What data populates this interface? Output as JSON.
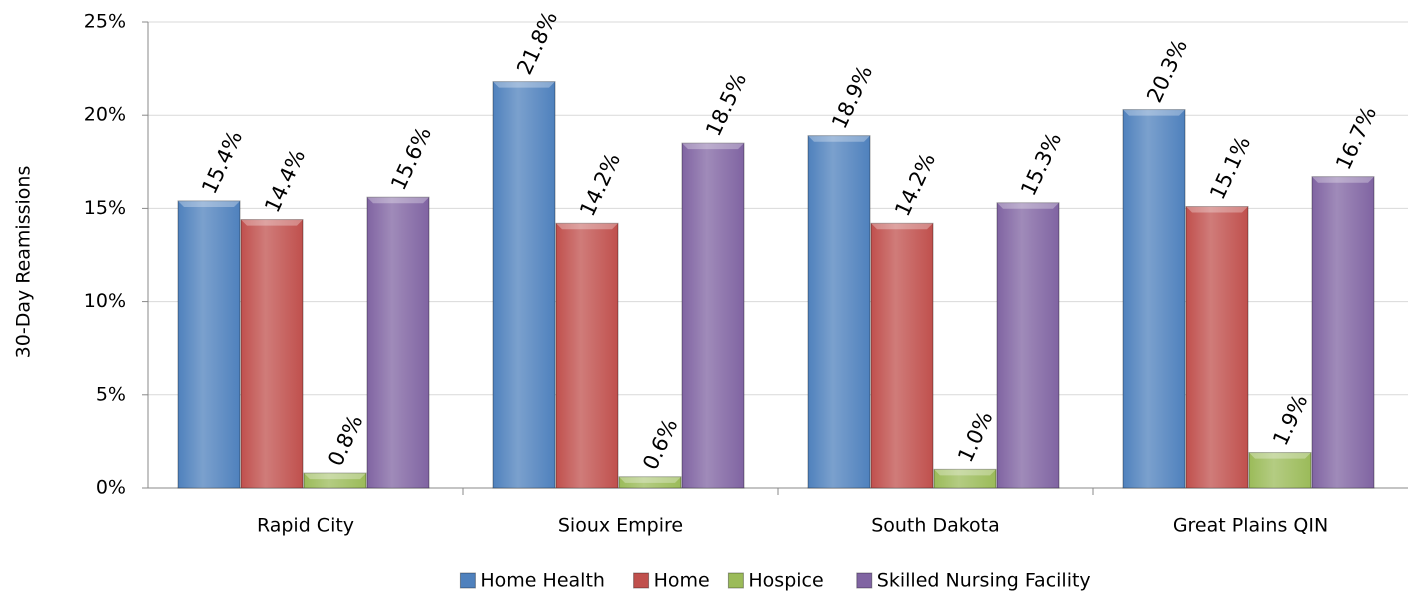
{
  "chart_data": {
    "type": "bar",
    "y_label": "30-Day Reamissions",
    "categories": [
      "Rapid City",
      "Sioux Empire",
      "South Dakota",
      "Great Plains QIN"
    ],
    "series": [
      {
        "name": "Home Health",
        "color": "#4f81bd",
        "values": [
          15.4,
          21.8,
          18.9,
          20.3
        ],
        "value_labels": [
          "15.4%",
          "21.8%",
          "18.9%",
          "20.3%"
        ]
      },
      {
        "name": "Home",
        "color": "#c0504d",
        "values": [
          14.4,
          14.2,
          14.2,
          15.1
        ],
        "value_labels": [
          "14.4%",
          "14.2%",
          "14.2%",
          "15.1%"
        ]
      },
      {
        "name": "Hospice",
        "color": "#9bbb59",
        "values": [
          0.8,
          0.6,
          1.0,
          1.9
        ],
        "value_labels": [
          "0.8%",
          "0.6%",
          "1.0%",
          "1.9%"
        ]
      },
      {
        "name": "Skilled Nursing Facility",
        "color": "#8064a2",
        "values": [
          15.6,
          18.5,
          15.3,
          16.7
        ],
        "value_labels": [
          "15.6%",
          "18.5%",
          "15.3%",
          "16.7%"
        ]
      }
    ],
    "ylim": [
      0,
      25
    ],
    "yticks": [
      {
        "value": 0,
        "label": "0%"
      },
      {
        "value": 5,
        "label": "5%"
      },
      {
        "value": 10,
        "label": "10%"
      },
      {
        "value": 15,
        "label": "15%"
      },
      {
        "value": 20,
        "label": "20%"
      },
      {
        "value": 25,
        "label": "25%"
      }
    ],
    "grid": true,
    "legend": "bottom"
  }
}
